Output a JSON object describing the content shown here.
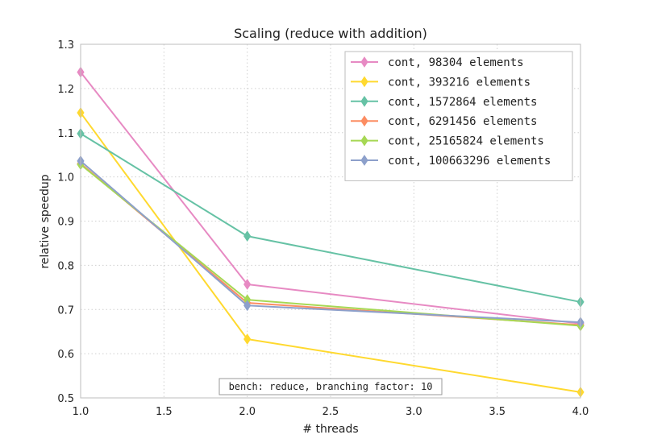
{
  "chart_data": {
    "type": "line",
    "title": "Scaling (reduce with addition)",
    "xlabel": "# threads",
    "ylabel": "relative speedup",
    "xlim": [
      1.0,
      4.0
    ],
    "ylim": [
      0.5,
      1.3
    ],
    "xticks": [
      "1.0",
      "1.5",
      "2.0",
      "2.5",
      "3.0",
      "3.5",
      "4.0"
    ],
    "yticks": [
      "0.5",
      "0.6",
      "0.7",
      "0.8",
      "0.9",
      "1.0",
      "1.1",
      "1.2",
      "1.3"
    ],
    "grid": true,
    "legend_position": "top-right",
    "marker": "thin-diamond",
    "annotation": "bench: reduce, branching factor: 10",
    "x": [
      1.0,
      2.0,
      4.0
    ],
    "series": [
      {
        "name": "cont, 98304 elements",
        "color": "#e78ac3",
        "values": [
          1.237,
          0.757,
          0.668
        ]
      },
      {
        "name": "cont, 393216 elements",
        "color": "#ffd92f",
        "values": [
          1.145,
          0.633,
          0.513
        ]
      },
      {
        "name": "cont, 1572864 elements",
        "color": "#66c2a5",
        "values": [
          1.098,
          0.866,
          0.717
        ]
      },
      {
        "name": "cont, 6291456 elements",
        "color": "#fc8d62",
        "values": [
          1.03,
          0.715,
          0.665
        ]
      },
      {
        "name": "cont, 25165824 elements",
        "color": "#a6d854",
        "values": [
          1.028,
          0.722,
          0.663
        ]
      },
      {
        "name": "cont, 100663296 elements",
        "color": "#8da0cb",
        "values": [
          1.036,
          0.709,
          0.671
        ]
      }
    ]
  }
}
